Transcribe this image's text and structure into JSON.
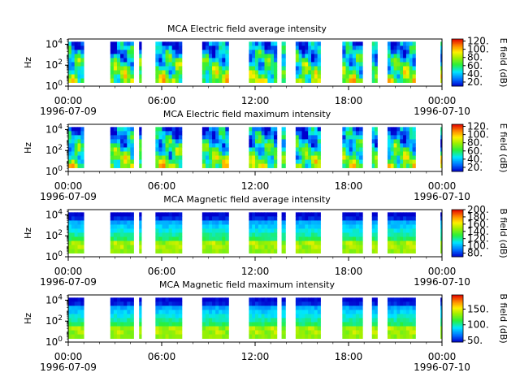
{
  "chart_data": [
    {
      "type": "heatmap",
      "title": "MCA  Electric field average intensity",
      "ylabel": "Hz",
      "yscale": "log",
      "yticks": [
        {
          "base": "10",
          "exp": "0"
        },
        {
          "base": "10",
          "exp": "2"
        },
        {
          "base": "10",
          "exp": "4"
        }
      ],
      "ylim": [
        1,
        31623
      ],
      "xlim": [
        "1996-07-09 00:00",
        "1996-07-10 00:00"
      ],
      "xticks": [
        "00:00",
        "06:00",
        "12:00",
        "18:00",
        "00:00"
      ],
      "xdates": [
        "1996-07-09",
        "1996-07-10"
      ],
      "colorbar_label": "E field (dB)",
      "colorbar_ticks": [
        "20.",
        "40.",
        "60.",
        "80.",
        "100.",
        "120."
      ],
      "colorbar_range": [
        10,
        125
      ],
      "colormap": "rainbow",
      "data_intervals_hours": [
        [
          0.0,
          1.0
        ],
        [
          2.7,
          4.2
        ],
        [
          4.55,
          4.7
        ],
        [
          5.6,
          7.3
        ],
        [
          8.6,
          10.3
        ],
        [
          11.6,
          13.4
        ],
        [
          13.7,
          13.95
        ],
        [
          14.6,
          16.2
        ],
        [
          17.6,
          18.9
        ],
        [
          19.5,
          19.85
        ],
        [
          20.5,
          22.3
        ],
        [
          23.9,
          24.0
        ]
      ]
    },
    {
      "type": "heatmap",
      "title": "MCA  Electric field maximum intensity",
      "ylabel": "Hz",
      "yscale": "log",
      "yticks": [
        {
          "base": "10",
          "exp": "0"
        },
        {
          "base": "10",
          "exp": "2"
        },
        {
          "base": "10",
          "exp": "4"
        }
      ],
      "ylim": [
        1,
        31623
      ],
      "xlim": [
        "1996-07-09 00:00",
        "1996-07-10 00:00"
      ],
      "xticks": [
        "00:00",
        "06:00",
        "12:00",
        "18:00",
        "00:00"
      ],
      "xdates": [
        "1996-07-09",
        "1996-07-10"
      ],
      "colorbar_label": "E field (dB)",
      "colorbar_ticks": [
        "20.",
        "40.",
        "60.",
        "80.",
        "100.",
        "120."
      ],
      "colorbar_range": [
        10,
        125
      ],
      "colormap": "rainbow",
      "data_intervals_hours": [
        [
          0.0,
          1.0
        ],
        [
          2.7,
          4.2
        ],
        [
          4.55,
          4.7
        ],
        [
          5.6,
          7.3
        ],
        [
          8.6,
          10.3
        ],
        [
          11.6,
          13.4
        ],
        [
          13.7,
          13.95
        ],
        [
          14.6,
          16.2
        ],
        [
          17.6,
          18.9
        ],
        [
          19.5,
          19.85
        ],
        [
          20.5,
          22.3
        ],
        [
          23.9,
          24.0
        ]
      ]
    },
    {
      "type": "heatmap",
      "title": "MCA  Magnetic field average intensity",
      "ylabel": "Hz",
      "yscale": "log",
      "yticks": [
        {
          "base": "10",
          "exp": "0"
        },
        {
          "base": "10",
          "exp": "2"
        },
        {
          "base": "10",
          "exp": "4"
        }
      ],
      "ylim": [
        1,
        31623
      ],
      "xlim": [
        "1996-07-09 00:00",
        "1996-07-10 00:00"
      ],
      "xticks": [
        "00:00",
        "06:00",
        "12:00",
        "18:00",
        "00:00"
      ],
      "xdates": [
        "1996-07-09",
        "1996-07-10"
      ],
      "colorbar_label": "B field (dB)",
      "colorbar_ticks": [
        "80.",
        "100.",
        "120.",
        "140.",
        "160.",
        "180.",
        "200."
      ],
      "colorbar_range": [
        70,
        200
      ],
      "colormap": "rainbow",
      "data_intervals_hours": [
        [
          0.0,
          1.0
        ],
        [
          2.7,
          4.2
        ],
        [
          4.55,
          4.7
        ],
        [
          5.6,
          7.3
        ],
        [
          8.6,
          10.3
        ],
        [
          11.6,
          13.4
        ],
        [
          13.7,
          13.95
        ],
        [
          14.6,
          16.2
        ],
        [
          17.6,
          18.9
        ],
        [
          19.5,
          19.85
        ],
        [
          20.5,
          22.3
        ],
        [
          23.9,
          24.0
        ]
      ]
    },
    {
      "type": "heatmap",
      "title": "MCA  Magnetic field maximum intensity",
      "ylabel": "Hz",
      "yscale": "log",
      "yticks": [
        {
          "base": "10",
          "exp": "0"
        },
        {
          "base": "10",
          "exp": "2"
        },
        {
          "base": "10",
          "exp": "4"
        }
      ],
      "ylim": [
        1,
        31623
      ],
      "xlim": [
        "1996-07-09 00:00",
        "1996-07-10 00:00"
      ],
      "xticks": [
        "00:00",
        "06:00",
        "12:00",
        "18:00",
        "00:00"
      ],
      "xdates": [
        "1996-07-09",
        "1996-07-10"
      ],
      "colorbar_label": "B field (dB)",
      "colorbar_ticks": [
        "50.",
        "100.",
        "150."
      ],
      "colorbar_range": [
        45,
        195
      ],
      "colormap": "rainbow",
      "data_intervals_hours": [
        [
          0.0,
          1.0
        ],
        [
          2.7,
          4.2
        ],
        [
          4.55,
          4.7
        ],
        [
          5.6,
          7.3
        ],
        [
          8.6,
          10.3
        ],
        [
          11.6,
          13.4
        ],
        [
          13.7,
          13.95
        ],
        [
          14.6,
          16.2
        ],
        [
          17.6,
          18.9
        ],
        [
          19.5,
          19.85
        ],
        [
          20.5,
          22.3
        ],
        [
          23.9,
          24.0
        ]
      ]
    }
  ]
}
